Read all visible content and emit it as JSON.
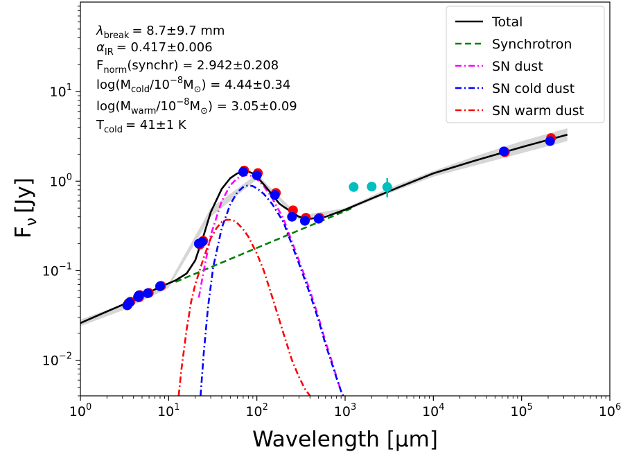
{
  "chart_data": {
    "type": "line",
    "xscale": "log",
    "yscale": "log",
    "xlim": [
      1,
      1000000
    ],
    "ylim": [
      0.004,
      100
    ],
    "xlabel": "Wavelength [μm]",
    "ylabel": "F",
    "ylabel_sub": "ν",
    "ylabel_unit": "[Jy]",
    "x_ticks": [
      {
        "value": 1,
        "base": "10",
        "exp": "0"
      },
      {
        "value": 10,
        "base": "10",
        "exp": "1"
      },
      {
        "value": 100,
        "base": "10",
        "exp": "2"
      },
      {
        "value": 1000,
        "base": "10",
        "exp": "3"
      },
      {
        "value": 10000,
        "base": "10",
        "exp": "4"
      },
      {
        "value": 100000,
        "base": "10",
        "exp": "5"
      },
      {
        "value": 1000000,
        "base": "10",
        "exp": "6"
      }
    ],
    "y_ticks": [
      {
        "value": 0.01,
        "base": "10",
        "exp": "−2"
      },
      {
        "value": 0.1,
        "base": "10",
        "exp": "−1"
      },
      {
        "value": 1,
        "base": "10",
        "exp": "0"
      },
      {
        "value": 10,
        "base": "10",
        "exp": "1"
      }
    ],
    "annotations": {
      "break": {
        "sym": "λ",
        "sub": "break",
        "value": "=  8.7±9.7 mm"
      },
      "alpha": {
        "sym": "α",
        "sub": "IR",
        "value": "=  0.417±0.006"
      },
      "fnorm": {
        "sym": "F",
        "sub": "norm",
        "value": "(synchr) = 2.942±0.208"
      },
      "mcold": {
        "pre": "log(M",
        "sub": "cold",
        "mid": "/10",
        "sup": "−8",
        "mid2": "M",
        "sub2": "⊙",
        "value": ") =  4.44±0.34"
      },
      "mwarm": {
        "pre": "log(M",
        "sub": "warm",
        "mid": "/10",
        "sup": "−8",
        "mid2": "M",
        "sub2": "⊙",
        "value": ") =  3.05±0.09"
      },
      "tcold": {
        "sym": "T",
        "sub": "cold",
        "value": "=  41±1 K"
      }
    },
    "legend": [
      {
        "label": "Total",
        "color": "#000000",
        "dash": ""
      },
      {
        "label": "Synchrotron",
        "color": "#008000",
        "dash": "9,5"
      },
      {
        "label": "SN dust",
        "color": "#ff00ff",
        "dash": "9,4,2,4"
      },
      {
        "label": "SN cold dust",
        "color": "#0000ff",
        "dash": "9,4,2,4"
      },
      {
        "label": "SN warm dust",
        "color": "#ff0000",
        "dash": "9,4,2,4"
      }
    ],
    "series": [
      {
        "name": "Total",
        "color": "#000000",
        "dash": "",
        "x": [
          1,
          2,
          4,
          8,
          12,
          16,
          20,
          25,
          30,
          40,
          50,
          60,
          70,
          80,
          90,
          100,
          120,
          150,
          180,
          200,
          250,
          300,
          400,
          600,
          1000,
          2000,
          4000,
          10000,
          30000,
          100000,
          330000
        ],
        "y": [
          0.026,
          0.035,
          0.047,
          0.066,
          0.078,
          0.093,
          0.13,
          0.25,
          0.45,
          0.82,
          1.08,
          1.22,
          1.28,
          1.28,
          1.22,
          1.12,
          0.92,
          0.7,
          0.56,
          0.52,
          0.45,
          0.4,
          0.38,
          0.4,
          0.48,
          0.64,
          0.85,
          1.22,
          1.7,
          2.4,
          3.3
        ]
      },
      {
        "name": "Synchrotron",
        "color": "#008000",
        "dash": "9,5",
        "x": [
          12,
          1200
        ],
        "y": [
          0.075,
          0.5
        ]
      },
      {
        "name": "SN dust",
        "color": "#ff00ff",
        "dash": "9,4,2,4",
        "x": [
          22,
          25,
          30,
          40,
          50,
          60,
          70,
          80,
          90,
          100,
          120,
          150,
          200,
          300,
          400,
          500,
          600,
          700,
          800,
          900,
          950
        ],
        "y": [
          0.05,
          0.1,
          0.25,
          0.6,
          0.9,
          1.08,
          1.15,
          1.17,
          1.13,
          1.05,
          0.88,
          0.64,
          0.38,
          0.13,
          0.06,
          0.03,
          0.016,
          0.01,
          0.0065,
          0.0045,
          0.004
        ]
      },
      {
        "name": "SN cold dust",
        "color": "#0000ff",
        "dash": "9,4,2,4",
        "x": [
          23,
          25,
          28,
          32,
          40,
          50,
          60,
          70,
          80,
          90,
          100,
          120,
          150,
          200,
          300,
          400,
          500,
          600,
          700,
          800,
          900,
          950
        ],
        "y": [
          0.004,
          0.012,
          0.04,
          0.11,
          0.3,
          0.55,
          0.75,
          0.86,
          0.9,
          0.88,
          0.83,
          0.72,
          0.55,
          0.35,
          0.12,
          0.055,
          0.028,
          0.015,
          0.0095,
          0.0063,
          0.0045,
          0.004
        ]
      },
      {
        "name": "SN warm dust",
        "color": "#ff0000",
        "dash": "9,4,2,4",
        "x": [
          13,
          14,
          16,
          18,
          20,
          25,
          30,
          35,
          40,
          45,
          50,
          55,
          60,
          70,
          80,
          100,
          120,
          150,
          200,
          250,
          300,
          350,
          400
        ],
        "y": [
          0.004,
          0.008,
          0.022,
          0.045,
          0.07,
          0.14,
          0.23,
          0.3,
          0.35,
          0.37,
          0.37,
          0.36,
          0.34,
          0.29,
          0.24,
          0.155,
          0.1,
          0.05,
          0.02,
          0.01,
          0.0065,
          0.0048,
          0.004
        ]
      }
    ],
    "band": {
      "x": [
        1,
        3,
        10,
        30,
        100,
        300,
        1000,
        3000,
        10000,
        30000,
        100000,
        330000
      ],
      "lower": [
        0.024,
        0.036,
        0.064,
        0.4,
        1.05,
        0.37,
        0.46,
        0.72,
        1.12,
        1.5,
        2.05,
        2.8
      ],
      "upper": [
        0.0285,
        0.042,
        0.072,
        0.5,
        1.2,
        0.41,
        0.5,
        0.82,
        1.3,
        1.9,
        2.8,
        3.9
      ]
    },
    "points_red": {
      "color": "#ff0000",
      "x": [
        3.4,
        3.6,
        4.5,
        4.6,
        5.8,
        8.0,
        22,
        24,
        70,
        100,
        160,
        250,
        350,
        500,
        63000,
        210000
      ],
      "y": [
        0.042,
        0.044,
        0.049,
        0.052,
        0.055,
        0.066,
        0.19,
        0.21,
        1.28,
        1.2,
        0.72,
        0.46,
        0.38,
        0.38,
        2.05,
        2.95
      ]
    },
    "points_blue": {
      "color": "#0000ff",
      "x": [
        3.4,
        3.6,
        4.5,
        4.6,
        5.8,
        8.0,
        22,
        24,
        70,
        100,
        160,
        250,
        350,
        500,
        63000,
        210000
      ],
      "y": [
        0.041,
        0.044,
        0.051,
        0.053,
        0.056,
        0.067,
        0.2,
        0.21,
        1.27,
        1.16,
        0.7,
        0.4,
        0.36,
        0.38,
        2.15,
        2.8
      ]
    },
    "points_cyan": {
      "color": "#00bfbf",
      "x": [
        1250,
        2000,
        3000
      ],
      "y": [
        0.86,
        0.87,
        0.86
      ],
      "err_low": [
        0.86,
        0.87,
        0.66
      ],
      "err_high": [
        0.86,
        0.87,
        1.08
      ]
    }
  }
}
